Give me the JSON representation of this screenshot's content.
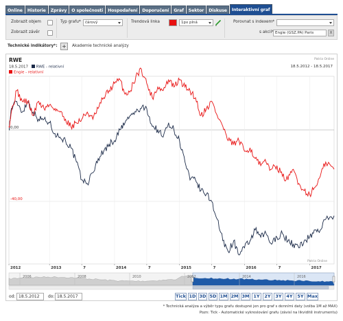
{
  "tabs": [
    "Online",
    "Historie",
    "Zprávy",
    "O společnosti",
    "Hospodaření",
    "Doporučení",
    "Graf",
    "Sektor",
    "Diskuse",
    "Interaktivní graf"
  ],
  "active_tab": "Interaktivní graf",
  "controls": {
    "show_volume_label": "Zobrazit objem",
    "show_close_label": "Zobrazit závěr",
    "chart_type_label": "Typ grafu*",
    "chart_type_value": "čárový",
    "trend_line_label": "Trendová linka",
    "line_style_value": "1px plná",
    "compare_index_label": "Porovnat s indexem*",
    "compare_index_value": "",
    "compare_stock_label": "s akcií*",
    "compare_stock_value": "Engie (GSZ.PA) Paris",
    "remove_button": "X",
    "trend_color": "#e81010"
  },
  "tech": {
    "label": "Technické indikátory*:",
    "plus": "+",
    "academy_link": "Akademie technické analýzy"
  },
  "chart": {
    "title": "RWE",
    "watermark_top": "Patria Online",
    "watermark_bottom": "Patria Online",
    "date_range": "18.5.2012 - 18.5.2017",
    "legend_date": "18.5.2017",
    "legend": [
      {
        "name": "RWE - relativní",
        "color": "#1b2a48"
      },
      {
        "name": "Engie - relativní",
        "color": "#e81010"
      }
    ],
    "y_ticks": [
      "0,00",
      "-40,00"
    ],
    "x_ticks": [
      "2012",
      "2013",
      "7",
      "2014",
      "7",
      "2015",
      "7",
      "2016",
      "7",
      "2017"
    ],
    "nav_years": [
      "2006",
      "2008",
      "2010",
      "2012",
      "2014",
      "2016"
    ]
  },
  "chart_data": {
    "type": "line",
    "title": "RWE",
    "ylabel": "",
    "xlabel": "",
    "ylim": [
      -75,
      30
    ],
    "x_range": [
      "2012-05-18",
      "2017-05-18"
    ],
    "series": [
      {
        "name": "RWE - relativní",
        "color": "#1b2a48",
        "points": [
          [
            "2012-05-18",
            0
          ],
          [
            "2012-06-01",
            12
          ],
          [
            "2012-07-01",
            16
          ],
          [
            "2012-08-01",
            10
          ],
          [
            "2012-09-01",
            16
          ],
          [
            "2012-10-01",
            10
          ],
          [
            "2012-11-01",
            6
          ],
          [
            "2012-12-01",
            6
          ],
          [
            "2013-01-01",
            4
          ],
          [
            "2013-02-01",
            -2
          ],
          [
            "2013-03-01",
            -4
          ],
          [
            "2013-04-01",
            -6
          ],
          [
            "2013-05-01",
            -10
          ],
          [
            "2013-06-01",
            -18
          ],
          [
            "2013-07-01",
            -28
          ],
          [
            "2013-08-01",
            -30
          ],
          [
            "2013-09-01",
            -24
          ],
          [
            "2013-10-01",
            -16
          ],
          [
            "2013-11-01",
            -12
          ],
          [
            "2013-12-01",
            -8
          ],
          [
            "2014-01-01",
            -6
          ],
          [
            "2014-02-01",
            0
          ],
          [
            "2014-03-01",
            4
          ],
          [
            "2014-04-01",
            8
          ],
          [
            "2014-05-01",
            10
          ],
          [
            "2014-06-01",
            12
          ],
          [
            "2014-07-01",
            12
          ],
          [
            "2014-08-01",
            2
          ],
          [
            "2014-09-01",
            0
          ],
          [
            "2014-10-01",
            -4
          ],
          [
            "2014-11-01",
            4
          ],
          [
            "2014-12-01",
            0
          ],
          [
            "2015-01-01",
            -6
          ],
          [
            "2015-02-01",
            -18
          ],
          [
            "2015-03-01",
            -28
          ],
          [
            "2015-04-01",
            -28
          ],
          [
            "2015-05-01",
            -34
          ],
          [
            "2015-06-01",
            -36
          ],
          [
            "2015-07-01",
            -40
          ],
          [
            "2015-08-01",
            -50
          ],
          [
            "2015-09-01",
            -62
          ],
          [
            "2015-10-01",
            -68
          ],
          [
            "2015-11-01",
            -62
          ],
          [
            "2015-12-01",
            -70
          ],
          [
            "2016-01-01",
            -66
          ],
          [
            "2016-02-01",
            -62
          ],
          [
            "2016-03-01",
            -56
          ],
          [
            "2016-04-01",
            -60
          ],
          [
            "2016-05-01",
            -58
          ],
          [
            "2016-06-01",
            -64
          ],
          [
            "2016-07-01",
            -60
          ],
          [
            "2016-08-01",
            -58
          ],
          [
            "2016-09-01",
            -62
          ],
          [
            "2016-10-01",
            -64
          ],
          [
            "2016-11-01",
            -66
          ],
          [
            "2016-12-01",
            -62
          ],
          [
            "2017-01-01",
            -60
          ],
          [
            "2017-02-01",
            -56
          ],
          [
            "2017-03-01",
            -56
          ],
          [
            "2017-04-01",
            -50
          ],
          [
            "2017-05-18",
            -48
          ]
        ]
      },
      {
        "name": "Engie - relativní",
        "color": "#e81010",
        "points": [
          [
            "2012-05-18",
            2
          ],
          [
            "2012-06-01",
            10
          ],
          [
            "2012-07-01",
            22
          ],
          [
            "2012-08-01",
            16
          ],
          [
            "2012-09-01",
            16
          ],
          [
            "2012-10-01",
            8
          ],
          [
            "2012-11-01",
            16
          ],
          [
            "2012-12-01",
            12
          ],
          [
            "2013-01-01",
            14
          ],
          [
            "2013-02-01",
            12
          ],
          [
            "2013-03-01",
            10
          ],
          [
            "2013-04-01",
            6
          ],
          [
            "2013-05-01",
            2
          ],
          [
            "2013-06-01",
            4
          ],
          [
            "2013-07-01",
            6
          ],
          [
            "2013-08-01",
            10
          ],
          [
            "2013-09-01",
            6
          ],
          [
            "2013-10-01",
            12
          ],
          [
            "2013-11-01",
            18
          ],
          [
            "2013-12-01",
            22
          ],
          [
            "2014-01-01",
            26
          ],
          [
            "2014-02-01",
            28
          ],
          [
            "2014-03-01",
            20
          ],
          [
            "2014-04-01",
            22
          ],
          [
            "2014-05-01",
            30
          ],
          [
            "2014-06-01",
            34
          ],
          [
            "2014-07-01",
            26
          ],
          [
            "2014-08-01",
            18
          ],
          [
            "2014-09-01",
            24
          ],
          [
            "2014-10-01",
            22
          ],
          [
            "2014-11-01",
            28
          ],
          [
            "2014-12-01",
            24
          ],
          [
            "2015-01-01",
            28
          ],
          [
            "2015-02-01",
            24
          ],
          [
            "2015-03-01",
            22
          ],
          [
            "2015-04-01",
            18
          ],
          [
            "2015-05-01",
            8
          ],
          [
            "2015-06-01",
            12
          ],
          [
            "2015-07-01",
            16
          ],
          [
            "2015-08-01",
            8
          ],
          [
            "2015-09-01",
            2
          ],
          [
            "2015-10-01",
            -6
          ],
          [
            "2015-11-01",
            -8
          ],
          [
            "2015-12-01",
            -6
          ],
          [
            "2016-01-01",
            -12
          ],
          [
            "2016-02-01",
            -10
          ],
          [
            "2016-03-01",
            -16
          ],
          [
            "2016-04-01",
            -20
          ],
          [
            "2016-05-01",
            -18
          ],
          [
            "2016-06-01",
            -22
          ],
          [
            "2016-07-01",
            -20
          ],
          [
            "2016-08-01",
            -26
          ],
          [
            "2016-09-01",
            -28
          ],
          [
            "2016-10-01",
            -22
          ],
          [
            "2016-11-01",
            -30
          ],
          [
            "2016-12-01",
            -34
          ],
          [
            "2017-01-01",
            -36
          ],
          [
            "2017-02-01",
            -32
          ],
          [
            "2017-03-01",
            -26
          ],
          [
            "2017-04-01",
            -18
          ],
          [
            "2017-05-18",
            -22
          ]
        ]
      }
    ]
  },
  "range_buttons": [
    "Tick",
    "1D",
    "3D",
    "5D",
    "1M",
    "2M",
    "3M",
    "1Y",
    "2Y",
    "3Y",
    "4Y",
    "5Y",
    "Max"
  ],
  "dates": {
    "from_label": "od:",
    "from_value": "18.5.2012",
    "to_label": "do:",
    "to_value": "18.5.2017"
  },
  "notes": [
    "* Technická analýza a výběr typu grafu dostupné jen pro graf s denními daty (volba 1M až MAX)",
    "Pozn: Tick - Automatické vykreslování grafu (závisí na likviditě instrumentu)"
  ]
}
